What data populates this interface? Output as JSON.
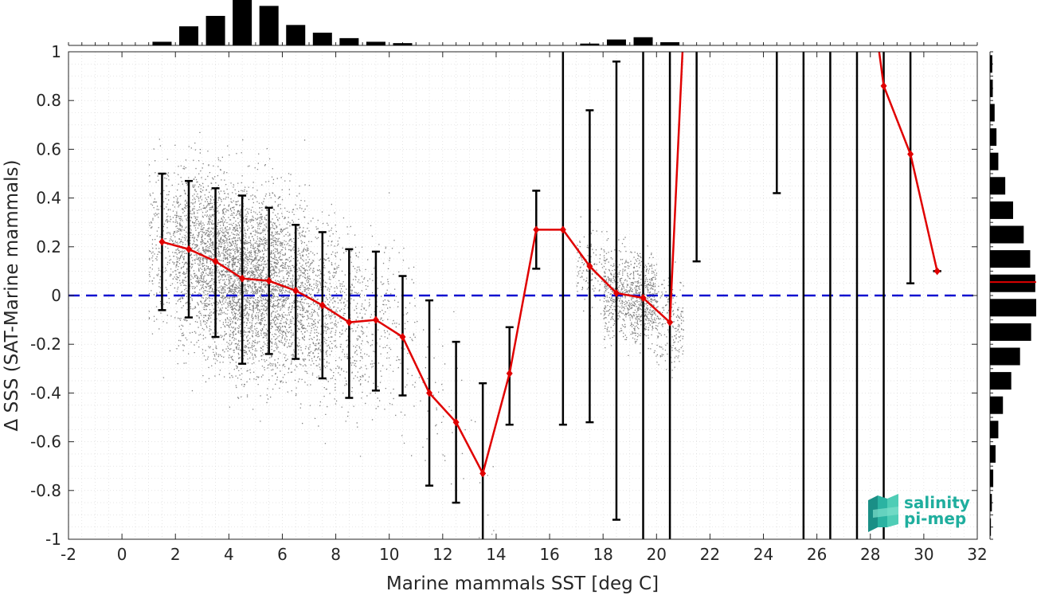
{
  "chart_data": {
    "type": "scatter",
    "xlabel": "Marine mammals SST [deg C]",
    "ylabel": "Δ SSS (SAT-Marine mammals)",
    "xlim": [
      -2,
      32
    ],
    "ylim": [
      -1,
      1
    ],
    "x_ticks": [
      "-2",
      "0",
      "2",
      "4",
      "6",
      "8",
      "10",
      "12",
      "14",
      "16",
      "18",
      "20",
      "22",
      "24",
      "26",
      "28",
      "30",
      "32"
    ],
    "y_ticks": [
      "1",
      "0.8",
      "0.6",
      "0.4",
      "0.2",
      "0",
      "-0.2",
      "-0.4",
      "-0.6",
      "-0.8",
      "-1"
    ],
    "grid": "dotted",
    "zero_line": 0,
    "colors": {
      "points": "#808080",
      "mean_line": "#e00000",
      "zero_line": "#1010d0",
      "bars": "#000000"
    },
    "binned": {
      "x": [
        1.5,
        2.5,
        3.5,
        4.5,
        5.5,
        6.5,
        7.5,
        8.5,
        9.5,
        10.5,
        11.5,
        12.5,
        13.5,
        14.5,
        15.5,
        16.5,
        17.5,
        18.5,
        19.5,
        20.5,
        21.5,
        24.5,
        25.5,
        26.5,
        27.5,
        28.5,
        29.5,
        30.5
      ],
      "mean": [
        0.22,
        0.19,
        0.14,
        0.07,
        0.06,
        0.02,
        -0.04,
        -0.11,
        -0.1,
        -0.17,
        -0.4,
        -0.52,
        -0.73,
        -0.32,
        0.27,
        0.27,
        0.12,
        0.01,
        -0.01,
        -0.11,
        null,
        null,
        null,
        null,
        null,
        0.86,
        0.58,
        0.1
      ],
      "err_low": [
        -0.06,
        -0.09,
        -0.17,
        -0.28,
        -0.24,
        -0.26,
        -0.34,
        -0.42,
        -0.39,
        -0.41,
        -0.78,
        -0.85,
        -1.0,
        -0.53,
        0.11,
        -0.53,
        -0.52,
        -0.92,
        -1.0,
        -1.0,
        0.14,
        0.42,
        -1.0,
        -1.0,
        -1.0,
        -1.0,
        0.05,
        0.1
      ],
      "err_high": [
        0.5,
        0.47,
        0.44,
        0.41,
        0.36,
        0.29,
        0.26,
        0.19,
        0.18,
        0.08,
        -0.02,
        -0.19,
        -0.36,
        -0.13,
        0.43,
        1.0,
        0.76,
        0.96,
        1.0,
        1.0,
        1.0,
        1.0,
        1.0,
        1.0,
        1.0,
        1.0,
        1.0,
        0.1
      ],
      "offscale_segment": [
        20.5,
        21.0
      ]
    },
    "top_histogram": {
      "x": [
        1.5,
        2.5,
        3.5,
        4.5,
        5.5,
        6.5,
        7.5,
        8.5,
        9.5,
        10.5,
        17.5,
        18.5,
        19.5,
        20.5
      ],
      "counts": [
        0.08,
        0.42,
        0.65,
        1.0,
        0.87,
        0.45,
        0.28,
        0.16,
        0.08,
        0.05,
        0.04,
        0.13,
        0.18,
        0.07
      ]
    },
    "right_histogram": {
      "y": [
        0.95,
        0.85,
        0.75,
        0.65,
        0.55,
        0.45,
        0.35,
        0.25,
        0.15,
        0.05,
        -0.05,
        -0.15,
        -0.25,
        -0.35,
        -0.45,
        -0.55,
        -0.65,
        -0.75,
        -0.85,
        -0.95
      ],
      "counts": [
        0.05,
        0.06,
        0.1,
        0.14,
        0.18,
        0.33,
        0.5,
        0.73,
        0.87,
        0.98,
        1.0,
        0.89,
        0.65,
        0.46,
        0.28,
        0.18,
        0.12,
        0.07,
        0.04,
        0.02
      ],
      "mean_line": 0.055
    },
    "logo": {
      "line1": "salinity",
      "line2": "pi-mep"
    }
  }
}
